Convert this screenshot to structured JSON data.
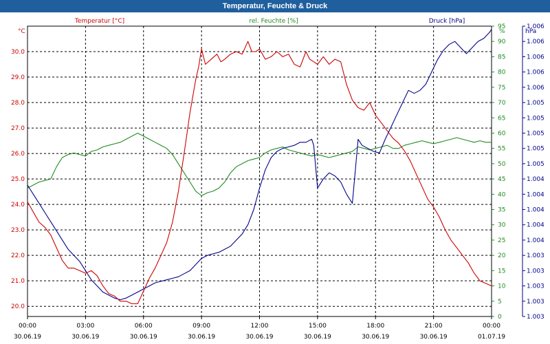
{
  "window": {
    "title": "Temperatur, Feuchte & Druck"
  },
  "colors": {
    "temperature": "#cc0000",
    "humidity": "#1f8a1f",
    "pressure": "#00008b",
    "title_bar": "#1f5f9e"
  },
  "chart_data": {
    "type": "line",
    "title": "Temperatur, Feuchte & Druck",
    "grid": true,
    "x_ticks": [
      {
        "time": "00:00",
        "date": "30.06.19"
      },
      {
        "time": "03:00",
        "date": "30.06.19"
      },
      {
        "time": "06:00",
        "date": "30.06.19"
      },
      {
        "time": "09:00",
        "date": "30.06.19"
      },
      {
        "time": "12:00",
        "date": "30.06.19"
      },
      {
        "time": "15:00",
        "date": "30.06.19"
      },
      {
        "time": "18:00",
        "date": "30.06.19"
      },
      {
        "time": "21:00",
        "date": "30.06.19"
      },
      {
        "time": "00:00",
        "date": "01.07.19"
      }
    ],
    "xlim_hours": [
      0,
      24
    ],
    "axes": {
      "temperature": {
        "label": "Temperatur [°C]",
        "unit": "°C",
        "ylim": [
          19.6,
          31.0
        ],
        "ticks": [
          "20.0",
          "21.0",
          "22.0",
          "23.0",
          "24.0",
          "25.0",
          "26.0",
          "27.0",
          "28.0",
          "29.0",
          "30.0"
        ]
      },
      "humidity": {
        "label": "rel. Feuchte [%]",
        "unit": "%",
        "ylim": [
          0,
          95
        ],
        "ticks": [
          "0",
          "5",
          "10",
          "15",
          "20",
          "25",
          "30",
          "35",
          "40",
          "45",
          "50",
          "55",
          "60",
          "65",
          "70",
          "75",
          "80",
          "85",
          "90",
          "95"
        ]
      },
      "pressure": {
        "label": "Druck [hPa]",
        "unit": "hPa",
        "ticks": [
          "1.003",
          "1.003",
          "1.003",
          "1.003",
          "1.003",
          "1.004",
          "1.004",
          "1.004",
          "1.004",
          "1.004",
          "1.005",
          "1.005",
          "1.005",
          "1.005",
          "1.005",
          "1.006",
          "1.006",
          "1.006",
          "1.006",
          "1.006"
        ]
      }
    },
    "series": [
      {
        "name": "Temperatur [°C]",
        "axis": "temperature",
        "x": [
          0,
          0.3,
          0.6,
          0.9,
          1.2,
          1.5,
          1.8,
          2.1,
          2.4,
          2.7,
          3.0,
          3.3,
          3.6,
          3.9,
          4.2,
          4.5,
          4.8,
          5.1,
          5.4,
          5.7,
          6.0,
          6.3,
          6.6,
          6.9,
          7.2,
          7.5,
          7.8,
          8.1,
          8.4,
          8.7,
          8.85,
          9.0,
          9.2,
          9.5,
          9.8,
          10.0,
          10.2,
          10.5,
          10.8,
          11.1,
          11.4,
          11.6,
          11.7,
          11.8,
          12.0,
          12.3,
          12.6,
          12.9,
          13.2,
          13.5,
          13.8,
          14.1,
          14.4,
          14.6,
          14.8,
          15.0,
          15.3,
          15.6,
          15.9,
          16.2,
          16.5,
          16.8,
          17.1,
          17.4,
          17.7,
          18.0,
          18.3,
          18.6,
          18.9,
          19.2,
          19.5,
          19.8,
          20.1,
          20.4,
          20.7,
          21.0,
          21.3,
          21.6,
          21.9,
          22.2,
          22.5,
          22.8,
          23.1,
          23.4,
          23.7,
          24.0
        ],
        "values": [
          24.1,
          23.7,
          23.3,
          23.1,
          22.8,
          22.3,
          21.8,
          21.5,
          21.5,
          21.4,
          21.3,
          21.4,
          21.2,
          20.8,
          20.5,
          20.4,
          20.2,
          20.2,
          20.1,
          20.1,
          20.6,
          21.1,
          21.5,
          22.0,
          22.5,
          23.3,
          24.5,
          26.0,
          27.6,
          28.9,
          29.4,
          30.1,
          29.5,
          29.7,
          29.9,
          29.6,
          29.7,
          29.9,
          30.0,
          29.9,
          30.4,
          30.0,
          30.0,
          30.0,
          30.1,
          29.7,
          29.8,
          30.0,
          29.8,
          29.9,
          29.5,
          29.4,
          30.0,
          29.7,
          29.6,
          29.5,
          29.8,
          29.5,
          29.7,
          29.6,
          28.7,
          28.1,
          27.8,
          27.7,
          28.0,
          27.5,
          27.2,
          26.9,
          26.6,
          26.4,
          26.1,
          25.7,
          25.2,
          24.7,
          24.2,
          23.9,
          23.5,
          23.0,
          22.6,
          22.3,
          22.0,
          21.7,
          21.3,
          21.0,
          20.9,
          20.8
        ]
      },
      {
        "name": "rel. Feuchte [%]",
        "axis": "humidity",
        "x": [
          0,
          0.3,
          0.6,
          0.9,
          1.2,
          1.5,
          1.8,
          2.1,
          2.4,
          2.7,
          3.0,
          3.3,
          3.6,
          3.9,
          4.2,
          4.5,
          4.8,
          5.1,
          5.4,
          5.7,
          6.0,
          6.3,
          6.6,
          6.9,
          7.2,
          7.5,
          7.8,
          8.1,
          8.4,
          8.7,
          9.0,
          9.3,
          9.6,
          9.9,
          10.2,
          10.5,
          10.8,
          11.1,
          11.4,
          11.7,
          12.0,
          12.3,
          12.6,
          12.9,
          13.2,
          13.5,
          13.8,
          14.1,
          14.4,
          14.7,
          15.0,
          15.3,
          15.6,
          15.9,
          16.2,
          16.5,
          16.8,
          17.1,
          17.4,
          17.7,
          18.0,
          18.3,
          18.6,
          18.9,
          19.2,
          19.5,
          19.8,
          20.1,
          20.4,
          20.7,
          21.0,
          21.3,
          21.6,
          21.9,
          22.2,
          22.5,
          22.8,
          23.1,
          23.4,
          23.7,
          24.0
        ],
        "values": [
          42.0,
          43.0,
          44.0,
          44.5,
          45.0,
          49.0,
          52.0,
          53.0,
          53.5,
          53.0,
          52.5,
          54.0,
          54.5,
          55.5,
          56.0,
          56.5,
          57.0,
          58.0,
          59.0,
          60.0,
          59.0,
          58.0,
          57.0,
          56.0,
          55.0,
          53.0,
          50.0,
          47.0,
          44.0,
          41.0,
          39.5,
          40.5,
          41.0,
          42.0,
          44.0,
          47.0,
          49.0,
          50.0,
          51.0,
          51.5,
          52.0,
          53.5,
          54.5,
          55.0,
          55.5,
          54.5,
          54.0,
          53.5,
          53.0,
          52.5,
          53.0,
          52.5,
          52.0,
          52.5,
          53.0,
          53.5,
          54.0,
          55.5,
          55.0,
          54.5,
          55.0,
          55.5,
          56.0,
          55.0,
          55.0,
          56.0,
          56.5,
          57.0,
          57.5,
          57.0,
          56.5,
          57.0,
          57.5,
          58.0,
          58.5,
          58.0,
          57.5,
          57.0,
          57.5,
          57.0,
          57.0
        ]
      },
      {
        "name": "Druck [hPa]",
        "axis": "pressure",
        "x": [
          0,
          0.3,
          0.6,
          0.9,
          1.2,
          1.5,
          1.8,
          2.1,
          2.4,
          2.7,
          3.0,
          3.3,
          3.6,
          3.9,
          4.2,
          4.5,
          4.8,
          5.1,
          5.4,
          5.7,
          6.0,
          6.3,
          6.6,
          6.9,
          7.2,
          7.5,
          7.8,
          8.1,
          8.4,
          8.7,
          9.0,
          9.3,
          9.6,
          9.9,
          10.2,
          10.5,
          10.8,
          11.1,
          11.4,
          11.7,
          12.0,
          12.3,
          12.6,
          12.9,
          13.2,
          13.5,
          13.8,
          14.1,
          14.4,
          14.7,
          14.8,
          15.0,
          15.3,
          15.6,
          15.9,
          16.2,
          16.5,
          16.8,
          16.9,
          17.1,
          17.3,
          17.6,
          17.9,
          18.2,
          18.5,
          18.8,
          19.1,
          19.4,
          19.7,
          20.0,
          20.3,
          20.6,
          20.9,
          21.2,
          21.5,
          21.8,
          22.1,
          22.4,
          22.7,
          23.0,
          23.3,
          23.6,
          23.9,
          24.0
        ],
        "values": [
          43.0,
          40.0,
          37.0,
          34.0,
          31.0,
          28.0,
          25.0,
          22.0,
          20.0,
          18.0,
          15.0,
          12.0,
          10.0,
          8.0,
          7.0,
          6.0,
          5.5,
          6.0,
          7.0,
          8.0,
          9.0,
          10.0,
          11.0,
          11.5,
          12.0,
          12.5,
          13.0,
          14.0,
          15.0,
          17.0,
          19.0,
          20.0,
          20.5,
          21.0,
          22.0,
          23.0,
          25.0,
          27.0,
          30.0,
          35.0,
          42.0,
          48.0,
          52.0,
          54.0,
          55.0,
          55.5,
          56.0,
          57.0,
          57.0,
          58.0,
          56.0,
          42.0,
          45.0,
          47.0,
          46.0,
          44.0,
          40.0,
          37.0,
          44.0,
          58.0,
          56.0,
          55.0,
          54.0,
          53.5,
          58.0,
          62.0,
          66.0,
          70.0,
          74.0,
          73.0,
          74.0,
          76.0,
          80.0,
          84.0,
          87.0,
          89.0,
          90.0,
          88.0,
          86.0,
          88.0,
          90.0,
          91.0,
          93.0,
          94.0
        ]
      }
    ]
  }
}
